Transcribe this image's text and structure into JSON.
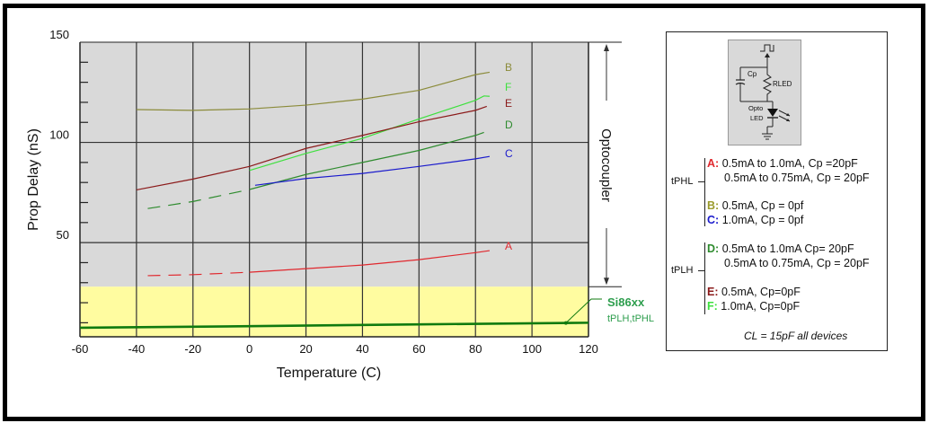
{
  "chart_data": {
    "type": "line",
    "title": "",
    "xlabel": "Temperature (C)",
    "ylabel": "Prop Delay (nS)",
    "xlim": [
      -60,
      120
    ],
    "ylim": [
      3,
      150
    ],
    "x_ticks": [
      "-60",
      "-40",
      "-20",
      "0",
      "20",
      "40",
      "60",
      "80",
      "100",
      "120"
    ],
    "y_tick_labels": [
      "50",
      "100",
      "150"
    ],
    "y_minor_ticks": [
      10,
      20,
      30,
      40,
      60,
      70,
      80,
      90,
      110,
      120,
      130,
      140
    ],
    "grid": true,
    "regions": [
      {
        "name": "Optocoupler",
        "y_from": 28,
        "y_to": 150,
        "color": "#d9d9d9"
      },
      {
        "name": "Si86xx",
        "y_from": 3,
        "y_to": 28,
        "color": "#fffca0"
      }
    ],
    "series": [
      {
        "name": "B",
        "color": "#8b8b3a",
        "dashed_x": [],
        "x": [
          -40,
          -20,
          0,
          20,
          40,
          60,
          80,
          85
        ],
        "y": [
          116.4,
          116,
          116.7,
          118.6,
          121.6,
          126,
          133.8,
          135
        ]
      },
      {
        "name": "F",
        "color": "#3ee03e",
        "x": [
          0,
          20,
          40,
          60,
          80,
          83,
          85
        ],
        "y": [
          86,
          94.5,
          102,
          111.7,
          121,
          123.2,
          123
        ]
      },
      {
        "name": "E",
        "color": "#8b1a1a",
        "x": [
          -40,
          -20,
          0,
          20,
          40,
          60,
          80,
          84
        ],
        "y": [
          76.3,
          81.7,
          88,
          97,
          103.5,
          110.3,
          116,
          118
        ]
      },
      {
        "name": "D",
        "color": "#2e8b2e",
        "dash_until": 0,
        "x": [
          -36,
          -20,
          0,
          20,
          40,
          60,
          80,
          83
        ],
        "y": [
          67,
          70.5,
          76.5,
          84,
          90,
          96,
          103.5,
          105
        ]
      },
      {
        "name": "C",
        "color": "#1a1acc",
        "x": [
          2,
          20,
          40,
          60,
          80,
          85
        ],
        "y": [
          78.6,
          82,
          84.5,
          88,
          91.8,
          93
        ]
      },
      {
        "name": "A",
        "color": "#e0282e",
        "dash_until": 0,
        "x": [
          -36,
          -20,
          0,
          20,
          40,
          60,
          80,
          85
        ],
        "y": [
          33.5,
          34,
          35.2,
          37,
          38.8,
          41.5,
          45,
          46
        ]
      },
      {
        "name": "Si86xx",
        "color": "#0f7a0f",
        "x": [
          -60,
          0,
          60,
          120
        ],
        "y": [
          7.5,
          8.3,
          9.2,
          10
        ]
      }
    ],
    "annotations": {
      "optocoupler_label": "Optocoupler",
      "si86xx_label": "Si86xx",
      "si86xx_sub": "tPLH,tPHL"
    }
  },
  "legend": {
    "schematic": {
      "cp_label": "Cp",
      "rled_label": "RLED",
      "opto_label": "Opto",
      "led_label": "LED"
    },
    "groups": [
      {
        "label": "tPHL",
        "entries": [
          {
            "key": "A:",
            "key_color": "#e0282e",
            "text": "0.5mA to 1.0mA, Cp =20pF"
          },
          {
            "key": "",
            "key_color": "",
            "text": "0.5mA to 0.75mA, Cp = 20pF"
          },
          {
            "key": "B:",
            "key_color": "#9a9a2a",
            "text": "0.5mA, Cp = 0pf"
          },
          {
            "key": "C:",
            "key_color": "#1a1acc",
            "text": "1.0mA, Cp = 0pf"
          }
        ]
      },
      {
        "label": "tPLH",
        "entries": [
          {
            "key": "D:",
            "key_color": "#2e8b2e",
            "text": "0.5mA to 1.0mA Cp= 20pF"
          },
          {
            "key": "",
            "key_color": "",
            "text": "0.5mA to 0.75mA, Cp = 20pF"
          },
          {
            "key": "E:",
            "key_color": "#8b1a1a",
            "text": "0.5mA, Cp=0pF"
          },
          {
            "key": "F:",
            "key_color": "#3ee03e",
            "text": "1.0mA, Cp=0pF"
          }
        ]
      }
    ],
    "note": "CL = 15pF all devices"
  }
}
